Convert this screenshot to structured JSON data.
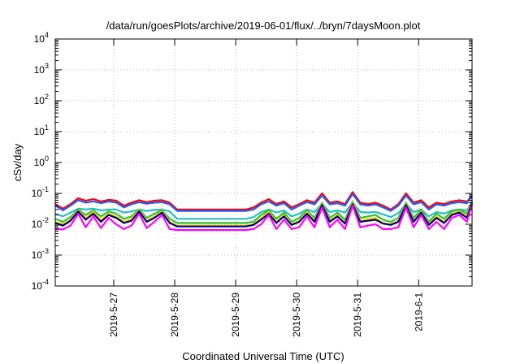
{
  "chart_data": {
    "type": "line",
    "title": "/data/run/goesPlots/archive/2019-06-01/flux/../bryn/7daysMoon.plot",
    "xlabel": "Coordinated Universal Time (UTC)",
    "ylabel": "cSv/day",
    "yscale": "log",
    "ylim": [
      0.0001,
      10000
    ],
    "xlim": [
      "2019-05-26T01:00",
      "2019-06-01T21:00"
    ],
    "grid": true,
    "x_ticks": [
      {
        "label": "2019-5-27",
        "at": "2019-05-27T00:00"
      },
      {
        "label": "2019-5-28",
        "at": "2019-05-28T00:00"
      },
      {
        "label": "2019-5-29",
        "at": "2019-05-29T00:00"
      },
      {
        "label": "2019-5-30",
        "at": "2019-05-30T00:00"
      },
      {
        "label": "2019-5-31",
        "at": "2019-05-31T00:00"
      },
      {
        "label": "2019-6-1",
        "at": "2019-06-01T00:00"
      }
    ],
    "y_ticks": [
      {
        "value": 0.0001,
        "base": "10",
        "exp": "-4"
      },
      {
        "value": 0.001,
        "base": "10",
        "exp": "-3"
      },
      {
        "value": 0.01,
        "base": "10",
        "exp": "-2"
      },
      {
        "value": 0.1,
        "base": "10",
        "exp": "-1"
      },
      {
        "value": 1,
        "base": "10",
        "exp": "0"
      },
      {
        "value": 10,
        "base": "10",
        "exp": "1"
      },
      {
        "value": 100,
        "base": "10",
        "exp": "2"
      },
      {
        "value": 1000,
        "base": "10",
        "exp": "3"
      },
      {
        "value": 10000,
        "base": "10",
        "exp": "4"
      }
    ],
    "x": [
      "2019-05-26T01:00",
      "2019-05-26T04:00",
      "2019-05-26T07:00",
      "2019-05-26T10:00",
      "2019-05-26T13:00",
      "2019-05-26T16:00",
      "2019-05-26T19:00",
      "2019-05-26T22:00",
      "2019-05-27T01:00",
      "2019-05-27T04:00",
      "2019-05-27T07:00",
      "2019-05-27T10:00",
      "2019-05-27T13:00",
      "2019-05-27T16:00",
      "2019-05-27T19:00",
      "2019-05-27T22:00",
      "2019-05-28T01:00",
      "2019-05-29T01:00",
      "2019-05-29T04:00",
      "2019-05-29T07:00",
      "2019-05-29T10:00",
      "2019-05-29T13:00",
      "2019-05-29T16:00",
      "2019-05-29T19:00",
      "2019-05-29T22:00",
      "2019-05-30T01:00",
      "2019-05-30T04:00",
      "2019-05-30T07:00",
      "2019-05-30T10:00",
      "2019-05-30T13:00",
      "2019-05-30T16:00",
      "2019-05-30T19:00",
      "2019-05-30T22:00",
      "2019-05-31T01:00",
      "2019-05-31T04:00",
      "2019-05-31T07:00",
      "2019-05-31T10:00",
      "2019-05-31T13:00",
      "2019-05-31T16:00",
      "2019-05-31T19:00",
      "2019-05-31T22:00",
      "2019-06-01T01:00",
      "2019-06-01T04:00",
      "2019-06-01T07:00",
      "2019-06-01T10:00",
      "2019-06-01T13:00",
      "2019-06-01T16:00",
      "2019-06-01T19:00",
      "2019-06-01T21:00"
    ],
    "series": [
      {
        "color": "#ff0000",
        "values": [
          0.045,
          0.032,
          0.045,
          0.07,
          0.058,
          0.065,
          0.055,
          0.062,
          0.058,
          0.04,
          0.05,
          0.06,
          0.052,
          0.058,
          0.06,
          0.05,
          0.03,
          0.03,
          0.03,
          0.035,
          0.05,
          0.065,
          0.045,
          0.055,
          0.035,
          0.045,
          0.06,
          0.05,
          0.1,
          0.05,
          0.055,
          0.045,
          0.11,
          0.05,
          0.045,
          0.05,
          0.04,
          0.03,
          0.045,
          0.1,
          0.05,
          0.06,
          0.035,
          0.05,
          0.045,
          0.055,
          0.06,
          0.055,
          0.08
        ]
      },
      {
        "color": "#1f5fff",
        "values": [
          0.04,
          0.028,
          0.04,
          0.06,
          0.05,
          0.055,
          0.048,
          0.055,
          0.05,
          0.035,
          0.044,
          0.052,
          0.046,
          0.05,
          0.052,
          0.044,
          0.027,
          0.027,
          0.027,
          0.03,
          0.044,
          0.055,
          0.04,
          0.048,
          0.03,
          0.04,
          0.052,
          0.044,
          0.085,
          0.044,
          0.048,
          0.04,
          0.095,
          0.044,
          0.04,
          0.044,
          0.035,
          0.027,
          0.04,
          0.085,
          0.044,
          0.052,
          0.03,
          0.044,
          0.04,
          0.048,
          0.052,
          0.048,
          0.09
        ]
      },
      {
        "color": "#22c0c0",
        "values": [
          0.022,
          0.018,
          0.024,
          0.032,
          0.03,
          0.032,
          0.028,
          0.03,
          0.03,
          0.024,
          0.026,
          0.03,
          0.027,
          0.029,
          0.03,
          0.026,
          0.015,
          0.015,
          0.015,
          0.017,
          0.025,
          0.03,
          0.024,
          0.028,
          0.018,
          0.022,
          0.03,
          0.025,
          0.045,
          0.025,
          0.028,
          0.024,
          0.05,
          0.025,
          0.024,
          0.025,
          0.021,
          0.017,
          0.023,
          0.045,
          0.025,
          0.03,
          0.018,
          0.025,
          0.022,
          0.028,
          0.03,
          0.028,
          0.05
        ]
      },
      {
        "color": "#30c030",
        "values": [
          0.015,
          0.012,
          0.017,
          0.03,
          0.02,
          0.028,
          0.018,
          0.026,
          0.022,
          0.015,
          0.018,
          0.03,
          0.016,
          0.022,
          0.028,
          0.015,
          0.011,
          0.011,
          0.011,
          0.012,
          0.02,
          0.028,
          0.015,
          0.024,
          0.012,
          0.016,
          0.028,
          0.016,
          0.05,
          0.016,
          0.024,
          0.014,
          0.055,
          0.016,
          0.018,
          0.02,
          0.014,
          0.012,
          0.016,
          0.05,
          0.016,
          0.03,
          0.012,
          0.022,
          0.015,
          0.026,
          0.03,
          0.022,
          0.06
        ]
      },
      {
        "color": "#ffd000",
        "values": [
          0.012,
          0.01,
          0.014,
          0.028,
          0.016,
          0.025,
          0.014,
          0.022,
          0.018,
          0.012,
          0.015,
          0.028,
          0.013,
          0.018,
          0.026,
          0.012,
          0.009,
          0.009,
          0.009,
          0.01,
          0.016,
          0.025,
          0.012,
          0.02,
          0.01,
          0.013,
          0.025,
          0.013,
          0.045,
          0.013,
          0.02,
          0.011,
          0.05,
          0.013,
          0.015,
          0.016,
          0.011,
          0.01,
          0.013,
          0.045,
          0.013,
          0.026,
          0.01,
          0.018,
          0.012,
          0.022,
          0.026,
          0.018,
          0.055
        ]
      },
      {
        "color": "#000080",
        "values": [
          0.011,
          0.009,
          0.013,
          0.026,
          0.014,
          0.022,
          0.012,
          0.02,
          0.016,
          0.011,
          0.013,
          0.026,
          0.012,
          0.016,
          0.024,
          0.011,
          0.0085,
          0.0085,
          0.0085,
          0.0095,
          0.014,
          0.022,
          0.011,
          0.018,
          0.0095,
          0.012,
          0.022,
          0.012,
          0.042,
          0.012,
          0.018,
          0.0105,
          0.045,
          0.012,
          0.013,
          0.014,
          0.0105,
          0.0095,
          0.012,
          0.042,
          0.012,
          0.024,
          0.0095,
          0.016,
          0.011,
          0.02,
          0.024,
          0.016,
          0.05
        ]
      },
      {
        "color": "#ff00ff",
        "values": [
          0.007,
          0.0068,
          0.009,
          0.022,
          0.008,
          0.018,
          0.0075,
          0.016,
          0.01,
          0.007,
          0.009,
          0.022,
          0.0075,
          0.012,
          0.02,
          0.007,
          0.0065,
          0.0065,
          0.0065,
          0.007,
          0.01,
          0.02,
          0.007,
          0.014,
          0.007,
          0.008,
          0.018,
          0.008,
          0.035,
          0.008,
          0.014,
          0.007,
          0.04,
          0.008,
          0.009,
          0.01,
          0.007,
          0.007,
          0.008,
          0.035,
          0.008,
          0.02,
          0.007,
          0.012,
          0.007,
          0.016,
          0.02,
          0.012,
          0.045
        ]
      }
    ]
  }
}
